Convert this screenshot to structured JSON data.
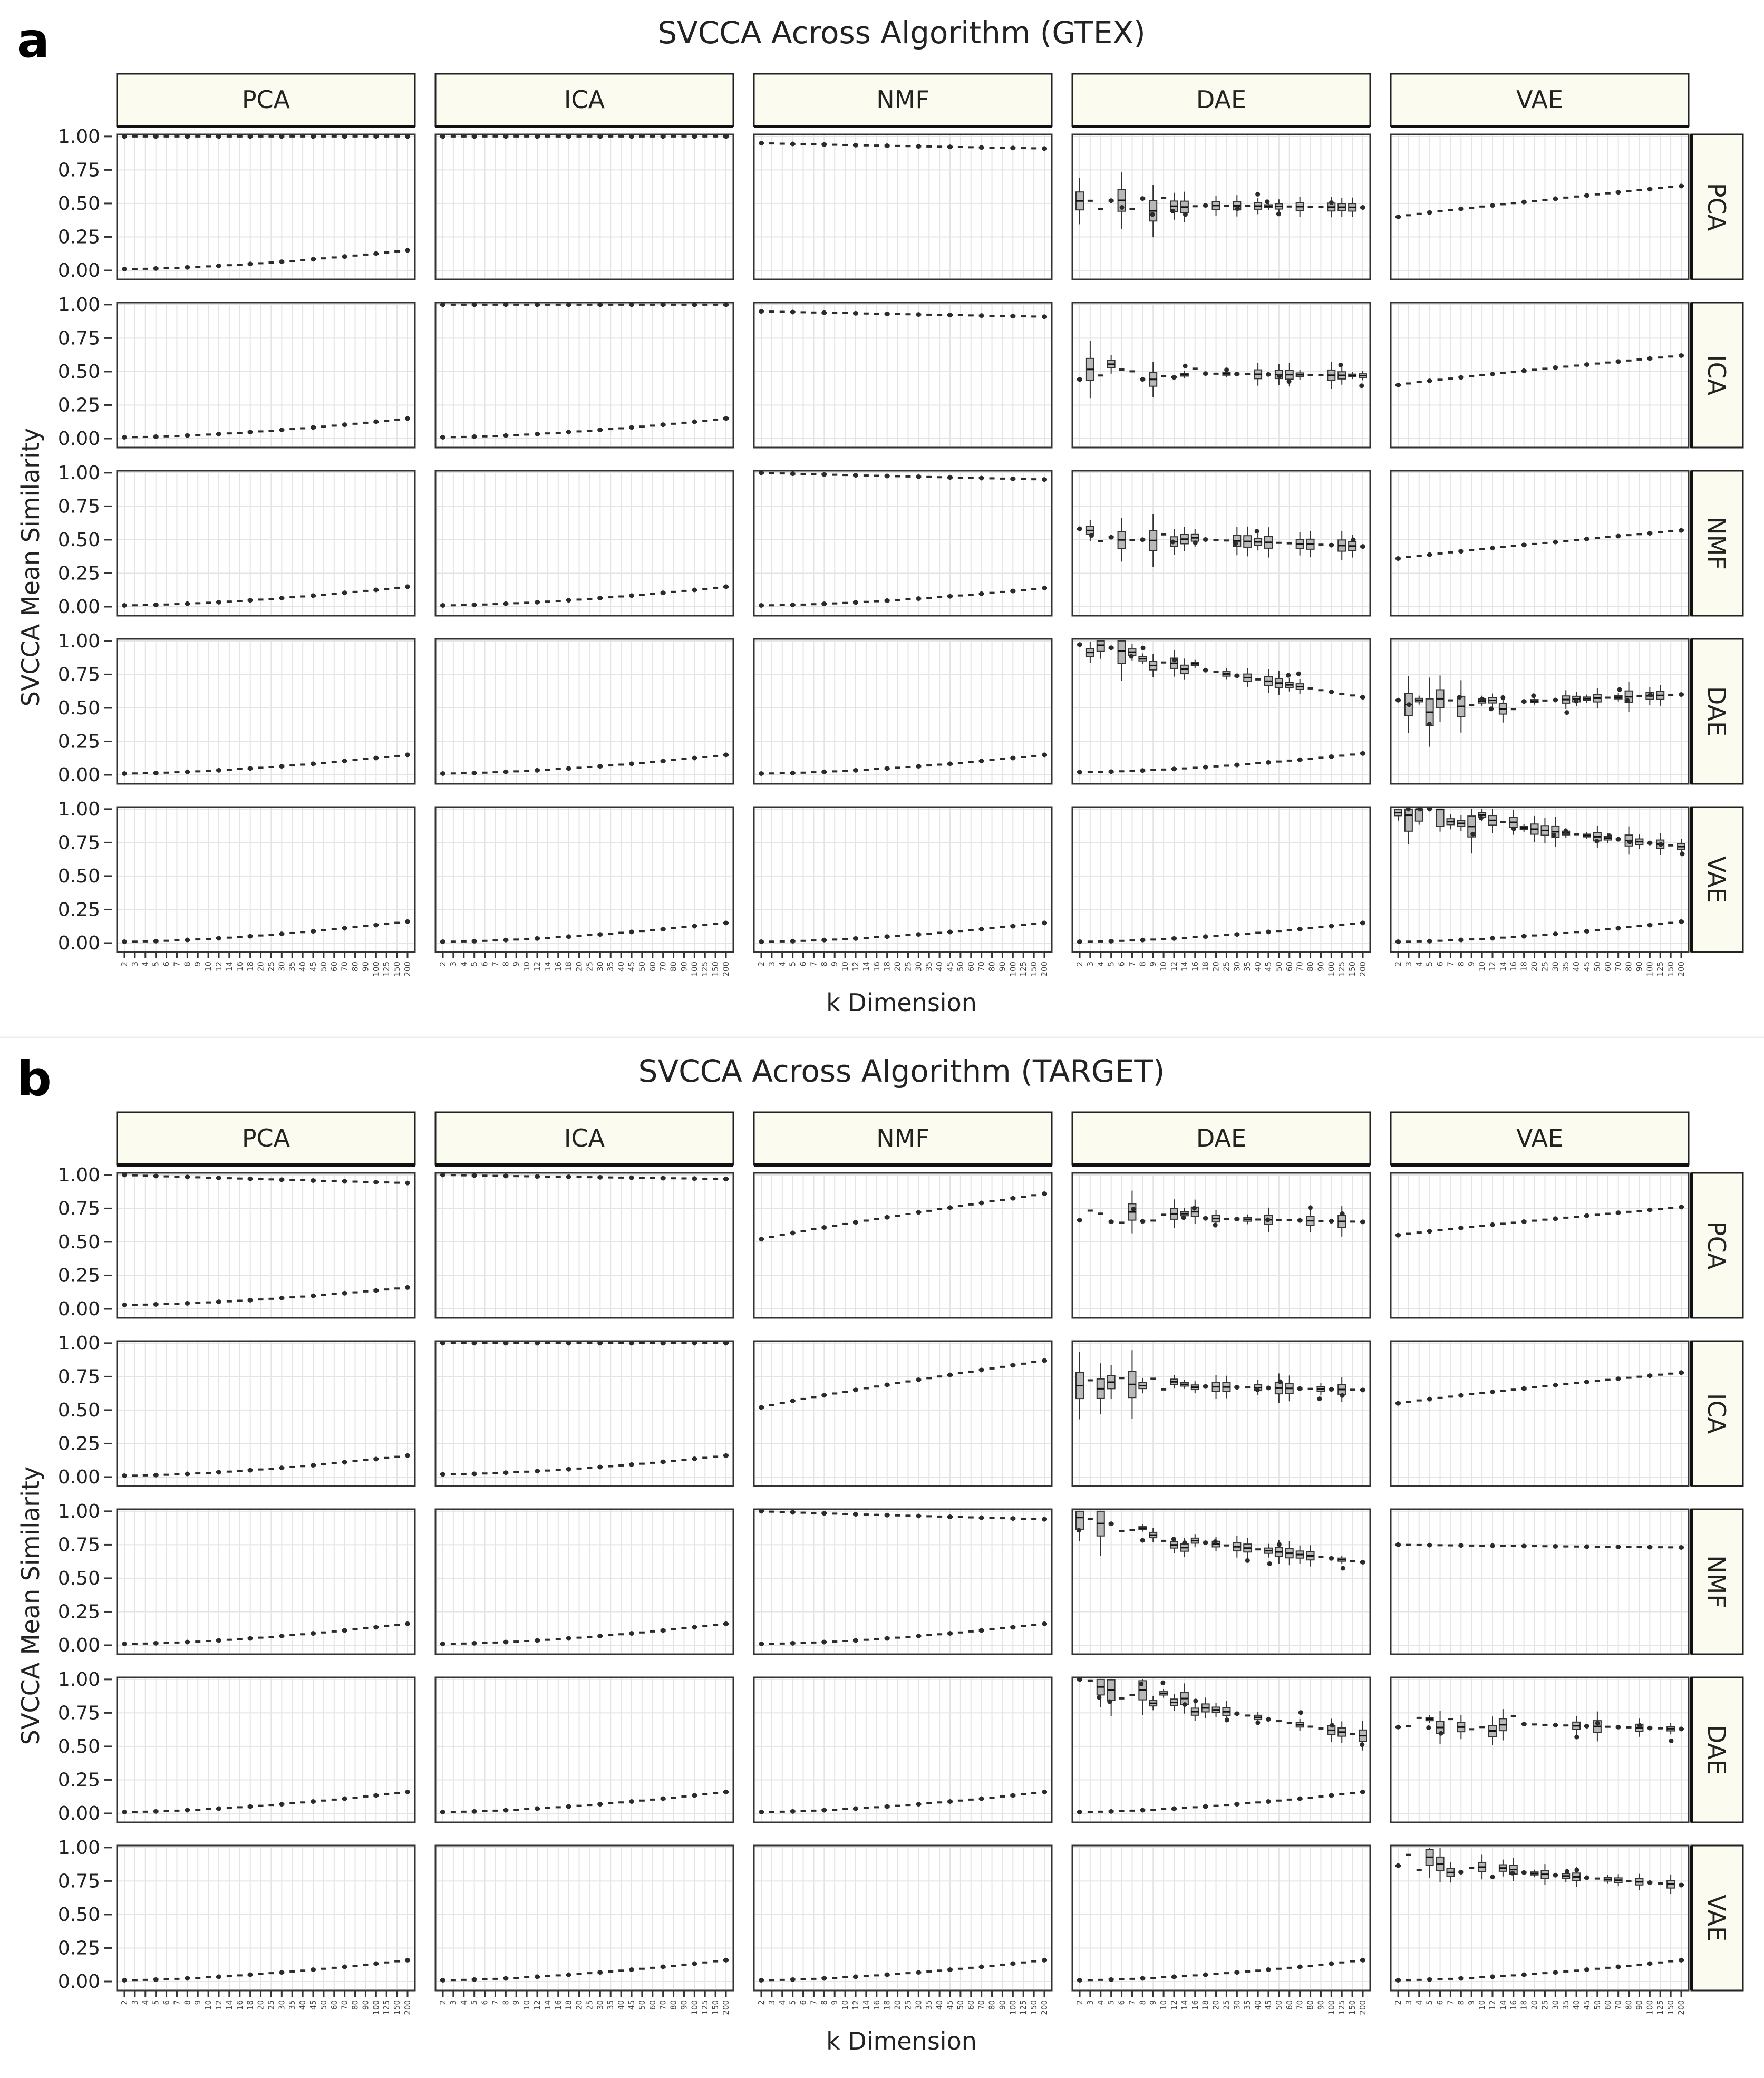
{
  "colors": {
    "strip_fill": "#fbfbf0",
    "point": "#2b2b2b",
    "box_fill": "#b8b8b8",
    "grid": "#e4e4e4"
  },
  "chart_data": [
    {
      "panel_label": "a",
      "type": "boxplot",
      "title": "SVCCA Across Algorithm (GTEX)",
      "xlabel": "k Dimension",
      "ylabel": "SVCCA Mean Similarity",
      "ylim": [
        0,
        1
      ],
      "yticks": [
        "0.00",
        "0.25",
        "0.50",
        "0.75",
        "1.00"
      ],
      "x_ticks": [
        "2",
        "3",
        "4",
        "5",
        "6",
        "7",
        "8",
        "9",
        "10",
        "12",
        "14",
        "16",
        "18",
        "20",
        "25",
        "30",
        "35",
        "40",
        "45",
        "50",
        "60",
        "70",
        "80",
        "90",
        "100",
        "125",
        "150",
        "200"
      ],
      "columns": [
        "PCA",
        "ICA",
        "NMF",
        "DAE",
        "VAE"
      ],
      "rows": [
        "PCA",
        "ICA",
        "NMF",
        "DAE",
        "VAE"
      ],
      "grid": true,
      "approx_medians": {
        "PCA": {
          "PCA": [
            [
              1.0,
              1.0
            ],
            [
              0.01,
              0.15
            ]
          ],
          "ICA": [
            [
              1.0,
              1.0
            ]
          ],
          "NMF": [
            [
              0.95,
              0.91
            ]
          ],
          "DAE": [
            [
              0.5,
              0.47
            ]
          ],
          "VAE": [
            [
              0.4,
              0.63
            ]
          ]
        },
        "ICA": {
          "PCA": [
            [
              0.01,
              0.15
            ]
          ],
          "ICA": [
            [
              1.0,
              1.0
            ],
            [
              0.01,
              0.15
            ]
          ],
          "NMF": [
            [
              0.95,
              0.91
            ]
          ],
          "DAE": [
            [
              0.5,
              0.47
            ]
          ],
          "VAE": [
            [
              0.4,
              0.62
            ]
          ]
        },
        "NMF": {
          "PCA": [
            [
              0.01,
              0.15
            ]
          ],
          "ICA": [
            [
              0.01,
              0.15
            ]
          ],
          "NMF": [
            [
              1.0,
              0.95
            ],
            [
              0.01,
              0.14
            ]
          ],
          "DAE": [
            [
              0.55,
              0.45
            ]
          ],
          "VAE": [
            [
              0.36,
              0.57
            ]
          ]
        },
        "DAE": {
          "PCA": [
            [
              0.01,
              0.15
            ]
          ],
          "ICA": [
            [
              0.01,
              0.15
            ]
          ],
          "NMF": [
            [
              0.01,
              0.15
            ]
          ],
          "DAE": [
            [
              0.97,
              0.58
            ],
            [
              0.02,
              0.16
            ]
          ],
          "VAE": [
            [
              0.5,
              0.6
            ]
          ]
        },
        "VAE": {
          "PCA": [
            [
              0.01,
              0.16
            ]
          ],
          "ICA": [
            [
              0.01,
              0.15
            ]
          ],
          "NMF": [
            [
              0.01,
              0.15
            ]
          ],
          "DAE": [
            [
              0.01,
              0.15
            ]
          ],
          "VAE": [
            [
              0.99,
              0.72
            ],
            [
              0.01,
              0.16
            ]
          ]
        }
      }
    },
    {
      "panel_label": "b",
      "type": "boxplot",
      "title": "SVCCA Across Algorithm (TARGET)",
      "xlabel": "k Dimension",
      "ylabel": "SVCCA Mean Similarity",
      "ylim": [
        0,
        1
      ],
      "yticks": [
        "0.00",
        "0.25",
        "0.50",
        "0.75",
        "1.00"
      ],
      "x_ticks": [
        "2",
        "3",
        "4",
        "5",
        "6",
        "7",
        "8",
        "9",
        "10",
        "12",
        "14",
        "16",
        "18",
        "20",
        "25",
        "30",
        "35",
        "40",
        "45",
        "50",
        "60",
        "70",
        "80",
        "90",
        "100",
        "125",
        "150",
        "200"
      ],
      "columns": [
        "PCA",
        "ICA",
        "NMF",
        "DAE",
        "VAE"
      ],
      "rows": [
        "PCA",
        "ICA",
        "NMF",
        "DAE",
        "VAE"
      ],
      "grid": true,
      "approx_medians": {
        "PCA": {
          "PCA": [
            [
              1.0,
              0.94
            ],
            [
              0.03,
              0.16
            ]
          ],
          "ICA": [
            [
              1.0,
              0.97
            ]
          ],
          "NMF": [
            [
              0.52,
              0.86
            ]
          ],
          "DAE": [
            [
              0.7,
              0.65
            ]
          ],
          "VAE": [
            [
              0.55,
              0.76
            ]
          ]
        },
        "ICA": {
          "PCA": [
            [
              0.01,
              0.16
            ]
          ],
          "ICA": [
            [
              1.0,
              1.0
            ],
            [
              0.02,
              0.16
            ]
          ],
          "NMF": [
            [
              0.52,
              0.87
            ]
          ],
          "DAE": [
            [
              0.7,
              0.65
            ]
          ],
          "VAE": [
            [
              0.55,
              0.78
            ]
          ]
        },
        "NMF": {
          "PCA": [
            [
              0.01,
              0.16
            ]
          ],
          "ICA": [
            [
              0.01,
              0.16
            ]
          ],
          "NMF": [
            [
              1.0,
              0.94
            ],
            [
              0.01,
              0.16
            ]
          ],
          "DAE": [
            [
              0.9,
              0.62
            ]
          ],
          "VAE": [
            [
              0.75,
              0.73
            ]
          ]
        },
        "DAE": {
          "PCA": [
            [
              0.01,
              0.16
            ]
          ],
          "ICA": [
            [
              0.01,
              0.16
            ]
          ],
          "NMF": [
            [
              0.01,
              0.16
            ]
          ],
          "DAE": [
            [
              0.98,
              0.58
            ],
            [
              0.01,
              0.16
            ]
          ],
          "VAE": [
            [
              0.7,
              0.63
            ]
          ]
        },
        "VAE": {
          "PCA": [
            [
              0.01,
              0.16
            ]
          ],
          "ICA": [
            [
              0.01,
              0.16
            ]
          ],
          "NMF": [
            [
              0.01,
              0.16
            ]
          ],
          "DAE": [
            [
              0.01,
              0.16
            ]
          ],
          "VAE": [
            [
              0.9,
              0.72
            ],
            [
              0.01,
              0.16
            ]
          ]
        }
      }
    }
  ]
}
